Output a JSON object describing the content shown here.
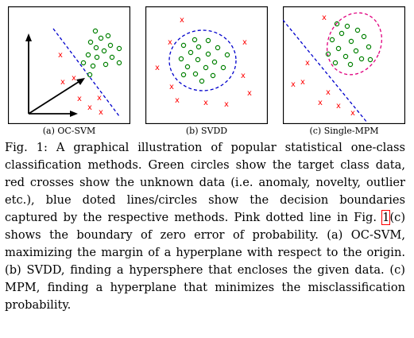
{
  "figure": {
    "panels": [
      {
        "subcaption": "(a) OC-SVM"
      },
      {
        "subcaption": "(b) SVDD"
      },
      {
        "subcaption": "(c) Single-MPM"
      }
    ],
    "colors": {
      "target_class": "#008000",
      "unknown_data": "#ff0000",
      "decision_boundary": "#0000cc",
      "zero_error_boundary": "#e0007f"
    },
    "caption": {
      "label": "Fig. 1:",
      "text_before_ref": "A graphical illustration of popular statistical one-class classification methods. Green circles show the target class data, red crosses show the unknown data (i.e. anomaly, novelty, outlier etc.), blue doted lines/circles show the decision boundaries captured by the respective methods. Pink dotted line in Fig.",
      "ref": "1",
      "text_after_ref": "(c) shows the boundary of zero error of probability. (a) OC-SVM, maximizing the margin of a hyperplane with respect to the origin. (b) SVDD, finding a hypersphere that encloses the given data. (c) MPM, finding a hyperplane that minimizes the misclassification probability."
    }
  }
}
